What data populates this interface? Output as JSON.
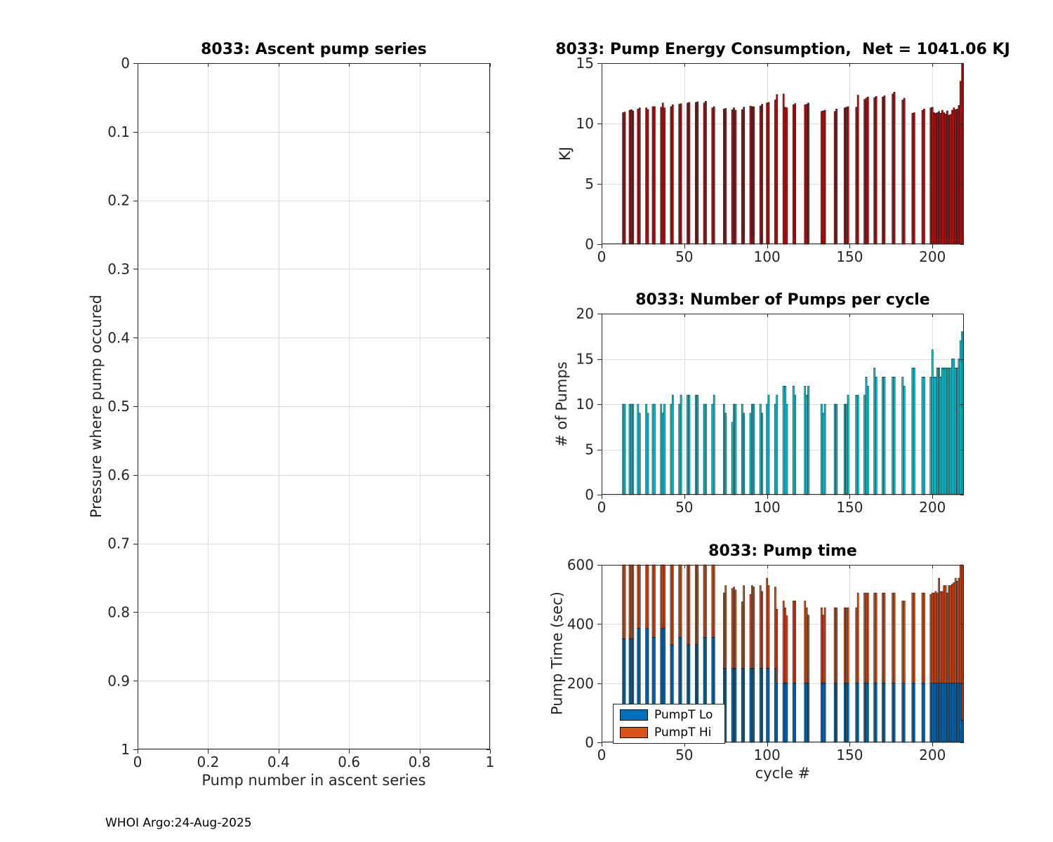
{
  "figure": {
    "footer": "WHOI Argo:24-Aug-2025"
  },
  "colors": {
    "background": "#ffffff",
    "axis": "#262626",
    "grid": "#dcdcdc",
    "bar_red": "#b51717",
    "bar_cyan": "#00d2e2",
    "bar_blue": "#0072BD",
    "bar_orange": "#D95319",
    "bar_edge": "#000000",
    "aux_red_dotted": "#ff0000"
  },
  "chart_data": [
    {
      "id": "ascent",
      "type": "scatter",
      "title": "8033: Ascent pump series",
      "xlabel": "Pump number in ascent series",
      "ylabel": "Pressure where pump occured",
      "xlim": [
        0,
        1
      ],
      "ylim": [
        0,
        1
      ],
      "y_reversed": true,
      "grid": true,
      "xticks": {
        "pos": [
          0,
          0.2,
          0.4,
          0.6,
          0.8,
          1
        ],
        "labels": [
          "0",
          "0.2",
          "0.4",
          "0.6",
          "0.8",
          "1"
        ]
      },
      "yticks": {
        "pos": [
          0,
          0.1,
          0.2,
          0.3,
          0.4,
          0.5,
          0.6,
          0.7,
          0.8,
          0.9,
          1
        ],
        "labels": [
          "0",
          "0.1",
          "0.2",
          "0.3",
          "0.4",
          "0.5",
          "0.6",
          "0.7",
          "0.8",
          "0.9",
          "1"
        ]
      },
      "points": []
    },
    {
      "id": "energy",
      "type": "bar",
      "title": "8033: Pump Energy Consumption,  Net = 1041.06 KJ",
      "xlabel": "",
      "ylabel": "KJ",
      "xlim": [
        0,
        219
      ],
      "ylim": [
        0,
        15
      ],
      "grid": true,
      "bar_width_units": 0.92,
      "color": "#b51717",
      "xticks": {
        "pos": [
          0,
          50,
          100,
          150,
          200
        ],
        "labels": [
          "0",
          "50",
          "100",
          "150",
          "200"
        ]
      },
      "yticks": {
        "pos": [
          0,
          5,
          10,
          15
        ],
        "labels": [
          "0",
          "5",
          "10",
          "15"
        ]
      },
      "x": [
        13,
        14,
        17,
        18,
        19,
        22,
        23,
        27,
        28,
        31,
        32,
        36,
        37,
        38,
        42,
        43,
        47,
        48,
        52,
        53,
        57,
        58,
        62,
        63,
        67,
        68,
        74,
        75,
        79,
        80,
        81,
        85,
        86,
        90,
        91,
        92,
        96,
        97,
        100,
        101,
        105,
        106,
        110,
        111,
        112,
        116,
        117,
        123,
        124,
        125,
        133,
        134,
        135,
        141,
        142,
        147,
        148,
        149,
        154,
        155,
        159,
        160,
        161,
        165,
        166,
        170,
        171,
        176,
        177,
        182,
        183,
        188,
        189,
        194,
        195,
        199,
        200,
        201,
        202,
        203,
        204,
        205,
        206,
        207,
        208,
        209,
        210,
        211,
        212,
        213,
        214,
        215,
        216,
        217,
        218
      ],
      "values": [
        10.9,
        10.95,
        11.1,
        11.15,
        11.05,
        11.2,
        11.3,
        11.3,
        11.15,
        11.4,
        11.4,
        11.35,
        11.7,
        11.3,
        11.4,
        11.55,
        11.6,
        11.65,
        11.7,
        11.75,
        11.75,
        11.8,
        11.7,
        11.85,
        11.3,
        11.4,
        11.2,
        11.25,
        11.15,
        11.3,
        11.1,
        11.15,
        11.35,
        11.45,
        11.4,
        11.4,
        11.45,
        11.6,
        11.7,
        11.75,
        11.95,
        12.4,
        12.45,
        11.35,
        11.3,
        11.55,
        11.65,
        11.55,
        11.6,
        11.7,
        11.0,
        11.05,
        11.1,
        11.0,
        11.2,
        11.3,
        11.35,
        11.4,
        11.35,
        12.35,
        12.0,
        12.1,
        12.2,
        12.15,
        12.25,
        12.2,
        12.3,
        12.45,
        12.6,
        11.95,
        12.1,
        10.85,
        10.9,
        11.1,
        11.2,
        11.3,
        11.35,
        10.9,
        10.85,
        10.9,
        11.0,
        10.85,
        11.1,
        10.9,
        10.8,
        11.05,
        10.7,
        10.75,
        11.1,
        11.3,
        11.15,
        11.2,
        11.5,
        13.5,
        15.0
      ],
      "aux_line": {
        "value": 0.35,
        "color": "#ff0000",
        "style": "dotted"
      }
    },
    {
      "id": "pumps",
      "type": "bar",
      "title": "8033: Number of Pumps per cycle",
      "xlabel": "",
      "ylabel": "# of Pumps",
      "xlim": [
        0,
        219
      ],
      "ylim": [
        0,
        20
      ],
      "grid": true,
      "bar_width_units": 0.92,
      "color": "#00d2e2",
      "xticks": {
        "pos": [
          0,
          50,
          100,
          150,
          200
        ],
        "labels": [
          "0",
          "50",
          "100",
          "150",
          "200"
        ]
      },
      "yticks": {
        "pos": [
          0,
          5,
          10,
          15,
          20
        ],
        "labels": [
          "0",
          "5",
          "10",
          "15",
          "20"
        ]
      },
      "x": [
        13,
        14,
        17,
        18,
        19,
        22,
        23,
        27,
        28,
        31,
        32,
        36,
        37,
        38,
        42,
        43,
        47,
        48,
        52,
        53,
        57,
        58,
        62,
        63,
        67,
        68,
        74,
        75,
        79,
        80,
        81,
        85,
        86,
        90,
        91,
        92,
        96,
        97,
        100,
        101,
        105,
        106,
        110,
        111,
        112,
        116,
        117,
        123,
        124,
        125,
        133,
        134,
        135,
        141,
        142,
        147,
        148,
        149,
        154,
        155,
        159,
        160,
        161,
        165,
        166,
        170,
        171,
        176,
        177,
        182,
        183,
        188,
        189,
        194,
        195,
        199,
        200,
        201,
        202,
        203,
        204,
        205,
        206,
        207,
        208,
        209,
        210,
        211,
        212,
        213,
        214,
        215,
        216,
        217,
        218
      ],
      "values": [
        10,
        10,
        10,
        10,
        10,
        10,
        9,
        10,
        9,
        10,
        10,
        10,
        9,
        10,
        10,
        11,
        10,
        11,
        11,
        11,
        11,
        11,
        10,
        10,
        10,
        11,
        10,
        9,
        8,
        10,
        10,
        10,
        9,
        9,
        10,
        10,
        10,
        9,
        10,
        11,
        10,
        11,
        12,
        12,
        10,
        12,
        11,
        12,
        11,
        12,
        10,
        9,
        10,
        10,
        10,
        10,
        10,
        11,
        11,
        11,
        11,
        13,
        12,
        14,
        13,
        13,
        13,
        13,
        13,
        13,
        12,
        14,
        14,
        13,
        13,
        13,
        16,
        13,
        13,
        14,
        14,
        13,
        14,
        14,
        14,
        14,
        14,
        14,
        15,
        15,
        14,
        14,
        15,
        17,
        18
      ]
    },
    {
      "id": "time",
      "type": "stacked-bar",
      "title": "8033: Pump time",
      "xlabel": "cycle #",
      "ylabel": "Pump Time (sec)",
      "xlim": [
        0,
        219
      ],
      "ylim": [
        0,
        600
      ],
      "grid": true,
      "bar_width_units": 0.92,
      "legend": {
        "position": "southwest",
        "entries": [
          "PumpT Lo",
          "PumpT Hi"
        ]
      },
      "xticks": {
        "pos": [
          0,
          50,
          100,
          150,
          200
        ],
        "labels": [
          "0",
          "50",
          "100",
          "150",
          "200"
        ]
      },
      "yticks": {
        "pos": [
          0,
          200,
          400,
          600
        ],
        "labels": [
          "0",
          "200",
          "400",
          "600"
        ]
      },
      "x": [
        13,
        14,
        17,
        18,
        19,
        22,
        23,
        27,
        28,
        31,
        32,
        36,
        37,
        38,
        42,
        43,
        47,
        48,
        52,
        53,
        57,
        58,
        62,
        63,
        67,
        68,
        74,
        75,
        79,
        80,
        81,
        85,
        86,
        90,
        91,
        92,
        96,
        97,
        100,
        101,
        105,
        106,
        110,
        111,
        112,
        116,
        117,
        123,
        124,
        125,
        133,
        134,
        135,
        141,
        142,
        147,
        148,
        149,
        154,
        155,
        159,
        160,
        161,
        165,
        166,
        170,
        171,
        176,
        177,
        182,
        183,
        188,
        189,
        194,
        195,
        199,
        200,
        201,
        202,
        203,
        204,
        205,
        206,
        207,
        208,
        209,
        210,
        211,
        212,
        213,
        214,
        215,
        216,
        217,
        218
      ],
      "series": [
        {
          "name": "PumpT Lo",
          "color": "#0072BD",
          "values": [
            350,
            350,
            350,
            350,
            350,
            385,
            385,
            385,
            385,
            355,
            355,
            385,
            385,
            385,
            330,
            330,
            355,
            355,
            330,
            330,
            330,
            330,
            355,
            355,
            355,
            355,
            250,
            250,
            250,
            250,
            250,
            250,
            250,
            250,
            250,
            250,
            250,
            250,
            250,
            250,
            250,
            200,
            200,
            200,
            200,
            200,
            200,
            200,
            200,
            200,
            200,
            200,
            200,
            200,
            200,
            200,
            200,
            200,
            200,
            200,
            200,
            200,
            200,
            200,
            200,
            200,
            200,
            200,
            200,
            200,
            200,
            200,
            200,
            200,
            200,
            200,
            200,
            200,
            200,
            200,
            200,
            200,
            200,
            200,
            200,
            200,
            200,
            200,
            200,
            200,
            200,
            200,
            200,
            200,
            75
          ]
        },
        {
          "name": "PumpT Hi",
          "color": "#D95319",
          "values": [
            300,
            300,
            300,
            300,
            300,
            275,
            275,
            275,
            275,
            295,
            295,
            275,
            275,
            275,
            310,
            310,
            295,
            295,
            310,
            310,
            310,
            310,
            295,
            295,
            295,
            295,
            255,
            280,
            270,
            275,
            265,
            225,
            280,
            250,
            280,
            275,
            280,
            260,
            305,
            280,
            275,
            250,
            278,
            255,
            228,
            278,
            278,
            278,
            255,
            230,
            255,
            230,
            255,
            255,
            255,
            255,
            255,
            255,
            255,
            305,
            305,
            305,
            305,
            305,
            305,
            305,
            305,
            305,
            305,
            278,
            278,
            305,
            305,
            305,
            305,
            300,
            305,
            305,
            310,
            305,
            355,
            310,
            310,
            330,
            330,
            305,
            330,
            330,
            335,
            340,
            355,
            345,
            355,
            400,
            565
          ]
        }
      ]
    }
  ]
}
